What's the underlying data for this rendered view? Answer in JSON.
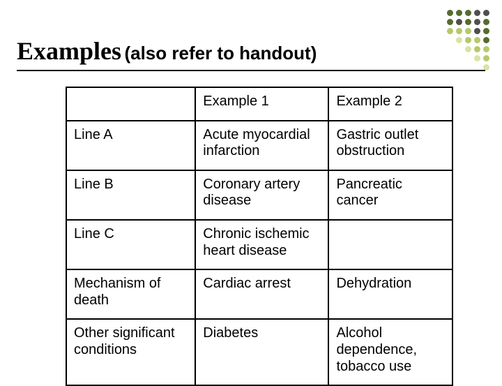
{
  "title": {
    "main": "Examples",
    "sub": "(also refer to handout)",
    "main_fontsize": 36,
    "sub_fontsize": 26,
    "color": "#000000"
  },
  "decor": {
    "rows": [
      [
        "#556b2f",
        "#556b2f",
        "#556b2f",
        "#4f4f4f",
        "#4f4f4f"
      ],
      [
        "#556b2f",
        "#4f4f4f",
        "#556b2f",
        "#4f4f4f",
        "#556b2f"
      ],
      [
        "#b5c96b",
        "#b5c96b",
        "#b5c96b",
        "#4f4f4f",
        "#556b2f"
      ],
      [
        "#d9e4a3",
        "#b5c96b",
        "#b5c96b",
        "#556b2f"
      ],
      [
        "#d9e4a3",
        "#b5c96b",
        "#b5c96b"
      ],
      [
        "#d9e4a3",
        "#b5c96b"
      ],
      [
        "#d9e4a3"
      ]
    ]
  },
  "table": {
    "border_color": "#000000",
    "font_size": 20,
    "columns": [
      "",
      "Example 1",
      "Example 2"
    ],
    "rows": [
      [
        "Line A",
        "Acute myocardial infarction",
        "Gastric outlet obstruction"
      ],
      [
        "Line B",
        "Coronary artery disease",
        "Pancreatic cancer"
      ],
      [
        "Line C",
        "Chronic ischemic heart disease",
        ""
      ],
      [
        "Mechanism of death",
        "Cardiac arrest",
        "Dehydration"
      ],
      [
        "Other significant conditions",
        "Diabetes",
        "Alcohol dependence, tobacco use"
      ]
    ]
  }
}
